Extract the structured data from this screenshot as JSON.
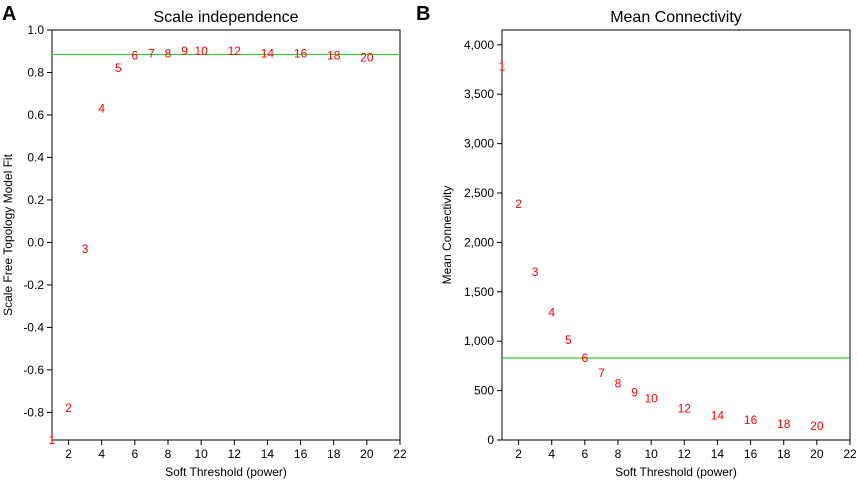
{
  "chart_data": [
    {
      "panel": "A",
      "type": "scatter",
      "title": "Scale independence",
      "xlabel": "Soft Threshold (power)",
      "ylabel": "Scale Free Topology Model Fit",
      "xlim": [
        1,
        22
      ],
      "ylim": [
        -0.93,
        1.0
      ],
      "xticks": [
        2,
        4,
        6,
        8,
        10,
        12,
        14,
        16,
        18,
        20,
        22
      ],
      "yticks": [
        -0.8,
        -0.6,
        -0.4,
        -0.2,
        0.0,
        0.2,
        0.4,
        0.6,
        0.8,
        1.0
      ],
      "ytick_labels": [
        "-0.8",
        "-0.6",
        "-0.4",
        "-0.2",
        "0.0",
        "0.2",
        "0.4",
        "0.6",
        "0.8",
        "1.0"
      ],
      "points": [
        {
          "label": "1",
          "x": 1,
          "y": -0.93
        },
        {
          "label": "2",
          "x": 2,
          "y": -0.78
        },
        {
          "label": "3",
          "x": 3,
          "y": -0.03
        },
        {
          "label": "4",
          "x": 4,
          "y": 0.63
        },
        {
          "label": "5",
          "x": 5,
          "y": 0.82
        },
        {
          "label": "6",
          "x": 6,
          "y": 0.88
        },
        {
          "label": "7",
          "x": 7,
          "y": 0.89
        },
        {
          "label": "8",
          "x": 8,
          "y": 0.89
        },
        {
          "label": "9",
          "x": 9,
          "y": 0.9
        },
        {
          "label": "10",
          "x": 10,
          "y": 0.9
        },
        {
          "label": "12",
          "x": 12,
          "y": 0.9
        },
        {
          "label": "14",
          "x": 14,
          "y": 0.89
        },
        {
          "label": "16",
          "x": 16,
          "y": 0.89
        },
        {
          "label": "18",
          "x": 18,
          "y": 0.88
        },
        {
          "label": "20",
          "x": 20,
          "y": 0.87
        }
      ],
      "hline": 0.885,
      "hline_color": "#33cc33",
      "point_color": "#ff0000"
    },
    {
      "panel": "B",
      "type": "scatter",
      "title": "Mean Connectivity",
      "xlabel": "Soft Threshold (power)",
      "ylabel": "Mean Connectivity",
      "xlim": [
        1,
        22
      ],
      "ylim": [
        0,
        4150
      ],
      "xticks": [
        2,
        4,
        6,
        8,
        10,
        12,
        14,
        16,
        18,
        20,
        22
      ],
      "yticks": [
        0,
        500,
        1000,
        1500,
        2000,
        2500,
        3000,
        3500,
        4000
      ],
      "ytick_labels": [
        "0",
        "500",
        "1,000",
        "1,500",
        "2,000",
        "2,500",
        "3,000",
        "3,500",
        "4,000"
      ],
      "points": [
        {
          "label": "1",
          "x": 1,
          "y": 3780
        },
        {
          "label": "2",
          "x": 2,
          "y": 2390
        },
        {
          "label": "3",
          "x": 3,
          "y": 1700
        },
        {
          "label": "4",
          "x": 4,
          "y": 1290
        },
        {
          "label": "5",
          "x": 5,
          "y": 1010
        },
        {
          "label": "6",
          "x": 6,
          "y": 830
        },
        {
          "label": "7",
          "x": 7,
          "y": 680
        },
        {
          "label": "8",
          "x": 8,
          "y": 570
        },
        {
          "label": "9",
          "x": 9,
          "y": 480
        },
        {
          "label": "10",
          "x": 10,
          "y": 420
        },
        {
          "label": "12",
          "x": 12,
          "y": 320
        },
        {
          "label": "14",
          "x": 14,
          "y": 250
        },
        {
          "label": "16",
          "x": 16,
          "y": 200
        },
        {
          "label": "18",
          "x": 18,
          "y": 160
        },
        {
          "label": "20",
          "x": 20,
          "y": 140
        }
      ],
      "hline": 830,
      "hline_color": "#33cc33",
      "point_color": "#ff0000"
    }
  ]
}
